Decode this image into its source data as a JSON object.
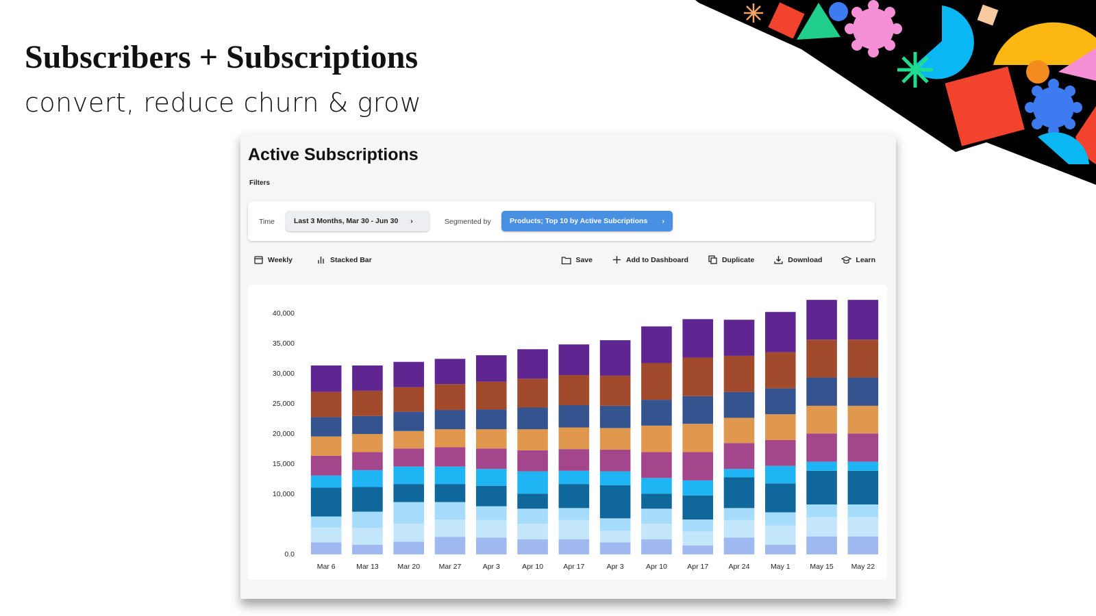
{
  "header": {
    "title": "Subscribers + Subscriptions",
    "subtitle": "convert, reduce churn & grow"
  },
  "panel": {
    "title": "Active Subscriptions",
    "filters_label": "Filters"
  },
  "filters": {
    "time_label": "Time",
    "time_value": "Last 3 Months, Mar 30 - Jun 30",
    "segment_label": "Segmented by",
    "segment_value": "Products; Top 10 by Active Subcriptions"
  },
  "toolbar": {
    "left": [
      "Weekly",
      "Stacked Bar"
    ],
    "right": [
      "Save",
      "Add to Dashboard",
      "Duplicate",
      "Download",
      "Learn"
    ]
  },
  "chart_data": {
    "type": "stacked_bar",
    "categories": [
      "Mar 6",
      "Mar 13",
      "Mar 20",
      "Mar 27",
      "Apr 3",
      "Apr 10",
      "Apr 17",
      "Apr 3",
      "Apr 10",
      "Apr 17",
      "Apr 24",
      "May 1",
      "May 15",
      "May 22"
    ],
    "series": [
      {
        "color": "#9fb8f0",
        "values": [
          2000,
          1600,
          2100,
          2900,
          2800,
          2500,
          2500,
          2000,
          2500,
          1500,
          2800,
          1600,
          3000,
          3000
        ]
      },
      {
        "color": "#c4e6fb",
        "values": [
          2500,
          2800,
          3000,
          2900,
          2900,
          2600,
          3200,
          1900,
          2600,
          2300,
          2900,
          3200,
          3200,
          3200
        ]
      },
      {
        "color": "#a6dcfb",
        "values": [
          1800,
          2700,
          3600,
          2900,
          2300,
          2500,
          2000,
          2100,
          2500,
          2000,
          2000,
          2200,
          2100,
          2100
        ]
      },
      {
        "color": "#0f6899",
        "values": [
          4800,
          4100,
          3000,
          3000,
          3400,
          2500,
          4000,
          5500,
          2500,
          4000,
          5100,
          4800,
          5600,
          5600
        ]
      },
      {
        "color": "#1fb4f4",
        "values": [
          2000,
          2800,
          2900,
          2900,
          2800,
          3700,
          2200,
          2300,
          2600,
          2500,
          1400,
          2900,
          1500,
          1500
        ]
      },
      {
        "color": "#a4468b",
        "values": [
          3300,
          3000,
          3000,
          3200,
          3400,
          3500,
          3600,
          3600,
          4300,
          4700,
          4300,
          4300,
          4700,
          4700
        ]
      },
      {
        "color": "#e0984f",
        "values": [
          3200,
          3000,
          2900,
          3000,
          3200,
          3500,
          3600,
          3600,
          4400,
          4700,
          4200,
          4300,
          4600,
          4600
        ]
      },
      {
        "color": "#34538f",
        "values": [
          3200,
          3000,
          3200,
          3200,
          3300,
          3600,
          3700,
          3700,
          4300,
          4600,
          4300,
          4300,
          4700,
          4700
        ]
      },
      {
        "color": "#a14a2c",
        "values": [
          4200,
          4200,
          4100,
          4300,
          4600,
          4800,
          5000,
          5000,
          6100,
          6400,
          6000,
          6000,
          6300,
          6300
        ]
      },
      {
        "color": "#5f2691",
        "values": [
          4400,
          4200,
          4200,
          4200,
          4400,
          4900,
          5100,
          5900,
          6100,
          6400,
          6000,
          6700,
          6600,
          6600
        ]
      }
    ],
    "ylim": [
      0,
      43000
    ],
    "yticks": [
      {
        "value": 0,
        "label": "0.0"
      },
      {
        "value": 10000,
        "label": "10,000"
      },
      {
        "value": 15000,
        "label": "15,000"
      },
      {
        "value": 20000,
        "label": "20,000"
      },
      {
        "value": 25000,
        "label": "25,000"
      },
      {
        "value": 30000,
        "label": "30,000"
      },
      {
        "value": 35000,
        "label": "35,000"
      },
      {
        "value": 40000,
        "label": "40,000"
      }
    ],
    "grid": false
  }
}
